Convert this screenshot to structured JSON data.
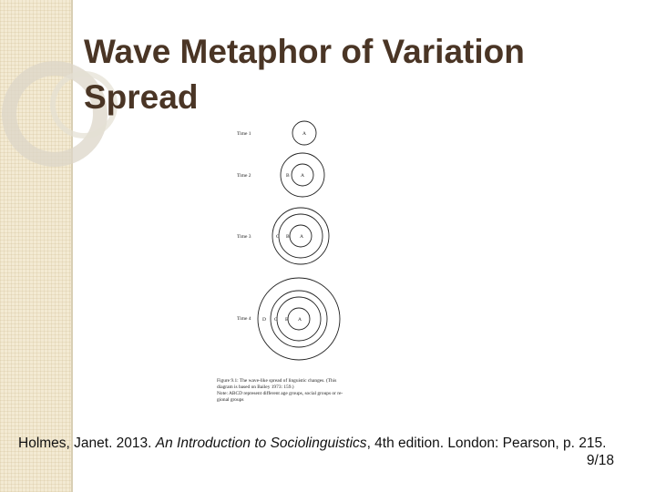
{
  "slide": {
    "title_line1": "Wave Metaphor of Variation",
    "title_line2": "Spread",
    "page_number": "9/18"
  },
  "citation": {
    "author_year": "Holmes, Janet. 2013. ",
    "book_title": "An Introduction to Sociolinguistics",
    "details": ", 4th edition. London: Pearson, p. 215."
  },
  "figure": {
    "rows": [
      {
        "time_label": "Time 1",
        "groups": [
          "A"
        ]
      },
      {
        "time_label": "Time 2",
        "groups": [
          "B",
          "A"
        ]
      },
      {
        "time_label": "Time 3",
        "groups": [
          "C",
          "B",
          "A"
        ]
      },
      {
        "time_label": "Time 4",
        "groups": [
          "D",
          "C",
          "B",
          "A"
        ]
      }
    ],
    "caption": {
      "line1": "Figure 9.1:   The wave-like spread of linguistic changes. (This",
      "line2": "diagram is based on Bailey 1973: 159.)",
      "line3": "Note: ABCD represent different age groups, social groups or re-",
      "line4": "gional groups"
    }
  },
  "colors": {
    "title": "#4a3525",
    "band": "#f3ead3",
    "decor_ring": "#d8d2c4"
  }
}
